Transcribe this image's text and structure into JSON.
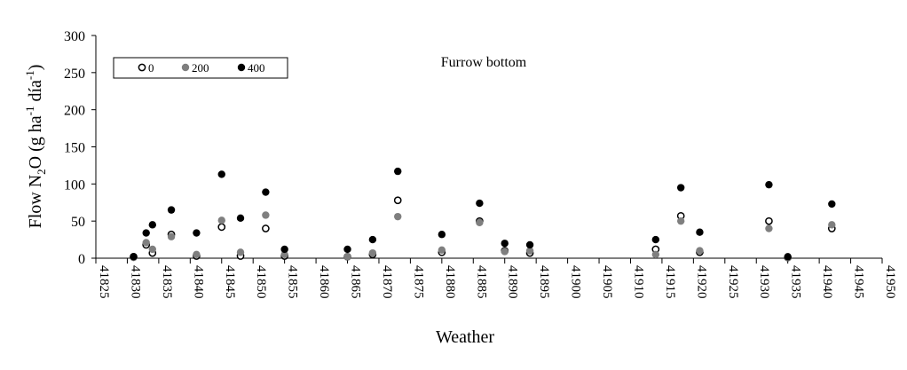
{
  "chart_data": {
    "type": "scatter",
    "title": "Furrow bottom",
    "xlabel": "Weather",
    "ylabel": {
      "prefix": "Flow N",
      "sub": "2",
      "middle": "O (g ha",
      "sup1": "-1",
      "middle2": " día",
      "sup2": "-1",
      "suffix": ")"
    },
    "xlim": [
      41825,
      41950
    ],
    "ylim": [
      0,
      300
    ],
    "x_ticks": [
      "41825",
      "41830",
      "41835",
      "41840",
      "41845",
      "41850",
      "41855",
      "41860",
      "41865",
      "41870",
      "41875",
      "41880",
      "41885",
      "41890",
      "41895",
      "41900",
      "41905",
      "41910",
      "41915",
      "41920",
      "41925",
      "41930",
      "41935",
      "41940",
      "41945",
      "41950"
    ],
    "y_ticks": [
      "0",
      "50",
      "100",
      "150",
      "200",
      "250",
      "300"
    ],
    "grid": false,
    "legend_position": "top-left",
    "series": [
      {
        "name": "0",
        "marker": "open-circle",
        "color": "#000000",
        "x": [
          41831,
          41833,
          41834,
          41837,
          41841,
          41845,
          41848,
          41852,
          41855,
          41865,
          41869,
          41873,
          41880,
          41886,
          41890,
          41894,
          41914,
          41918,
          41921,
          41932,
          41935,
          41942
        ],
        "y": [
          2,
          18,
          7,
          32,
          3,
          42,
          3,
          40,
          3,
          2,
          5,
          78,
          8,
          50,
          10,
          7,
          12,
          57,
          8,
          50,
          1,
          40
        ]
      },
      {
        "name": "200",
        "marker": "gray-circle",
        "color": "#7f7f7f",
        "x": [
          41831,
          41833,
          41834,
          41837,
          41841,
          41845,
          41848,
          41852,
          41855,
          41865,
          41869,
          41873,
          41880,
          41886,
          41890,
          41894,
          41914,
          41918,
          41921,
          41932,
          41935,
          41942
        ],
        "y": [
          1,
          21,
          12,
          29,
          5,
          51,
          8,
          58,
          5,
          2,
          7,
          56,
          11,
          48,
          9,
          10,
          5,
          50,
          10,
          40,
          1,
          45
        ]
      },
      {
        "name": "400",
        "marker": "black-circle",
        "color": "#000000",
        "x": [
          41831,
          41833,
          41834,
          41837,
          41841,
          41845,
          41848,
          41852,
          41855,
          41865,
          41869,
          41873,
          41880,
          41886,
          41890,
          41894,
          41914,
          41918,
          41921,
          41932,
          41935,
          41942
        ],
        "y": [
          2,
          34,
          45,
          65,
          34,
          113,
          54,
          89,
          12,
          12,
          25,
          117,
          32,
          74,
          20,
          18,
          25,
          95,
          35,
          99,
          2,
          73
        ]
      }
    ]
  }
}
